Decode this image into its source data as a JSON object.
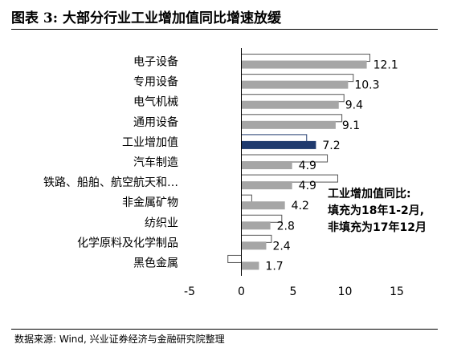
{
  "title": "图表 3:  大部分行业工业增加值同比增速放缓",
  "source": "数据来源:  Wind, 兴业证券经济与金融研究院整理",
  "annotation": [
    "工业增加值同比:",
    "填充为18年1-2月,",
    "非填充为17年12月"
  ],
  "colors": {
    "filled": "#a6a6a6",
    "highlight": "#1f3a6e",
    "outline": "#000000"
  },
  "chart_data": {
    "type": "bar",
    "orientation": "horizontal",
    "title": "",
    "xlabel": "",
    "ylabel": "",
    "xlim": [
      -5,
      15
    ],
    "xticks": [
      "-5",
      "0",
      "5",
      "10",
      "15"
    ],
    "grid": false,
    "categories": [
      "电子设备",
      "专用设备",
      "电气机械",
      "通用设备",
      "工业增加值",
      "汽车制造",
      "铁路、船舶、航空航天和…",
      "非金属矿物",
      "纺织业",
      "化学原料及化学制品",
      "黑色金属"
    ],
    "series": [
      {
        "values": [
          12.1,
          10.3,
          9.4,
          9.1,
          7.2,
          4.9,
          4.9,
          4.2,
          2.8,
          2.4,
          1.7
        ]
      },
      {
        "values": [
          12.4,
          10.8,
          9.9,
          9.7,
          6.3,
          8.3,
          9.3,
          1.0,
          3.9,
          2.9,
          -1.3
        ]
      }
    ],
    "value_labels": [
      "12.1",
      "10.3",
      "9.4",
      "9.1",
      "7.2",
      "4.9",
      "4.9",
      "4.2",
      "2.8",
      "2.4",
      "1.7"
    ],
    "highlight_category": "工业增加值"
  }
}
